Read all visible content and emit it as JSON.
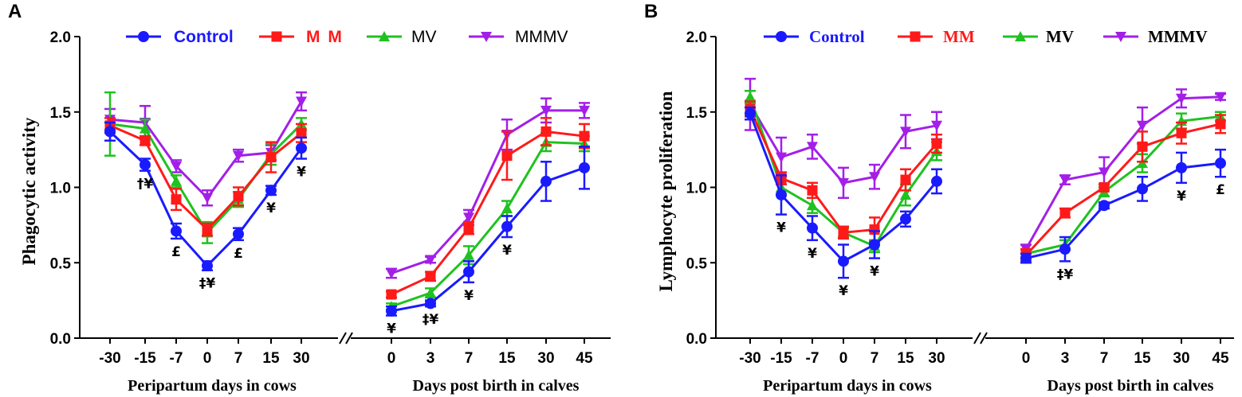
{
  "series_styles": [
    {
      "name": "Control",
      "color": "#1a1aff",
      "marker": "circle"
    },
    {
      "name": "M M",
      "color": "#ff1a1a",
      "marker": "square"
    },
    {
      "name": "MV",
      "color": "#1fc21f",
      "marker": "triangle-up"
    },
    {
      "name": "MMMV",
      "color": "#a31fe8",
      "marker": "triangle-down"
    }
  ],
  "chart_data": [
    {
      "panel_label": "A",
      "type": "line",
      "ylabel": "Phagocytic activity",
      "ylim": [
        0,
        2.0
      ],
      "yticks": [
        "0.0",
        "0.5",
        "1.0",
        "1.5",
        "2.0"
      ],
      "legend": [
        "Control",
        "M M",
        "MV",
        "MMMV"
      ],
      "segments": [
        {
          "xlabel": "Peripartum days in cows",
          "categories": [
            "-30",
            "-15",
            "-7",
            "0",
            "7",
            "15",
            "30"
          ],
          "series": [
            {
              "name": "Control",
              "values": [
                1.37,
                1.15,
                0.71,
                0.48,
                0.69,
                0.98,
                1.26
              ],
              "errors": [
                0.06,
                0.04,
                0.05,
                0.03,
                0.04,
                0.03,
                0.07
              ]
            },
            {
              "name": "M M",
              "values": [
                1.41,
                1.31,
                0.92,
                0.72,
                0.94,
                1.2,
                1.36
              ],
              "errors": [
                0.05,
                0.03,
                0.07,
                0.04,
                0.06,
                0.1,
                0.06
              ]
            },
            {
              "name": "MV",
              "values": [
                1.42,
                1.39,
                1.04,
                0.7,
                0.92,
                1.22,
                1.42
              ],
              "errors": [
                0.21,
                0.06,
                0.04,
                0.07,
                0.05,
                0.07,
                0.04
              ]
            },
            {
              "name": "MMMV",
              "values": [
                1.45,
                1.43,
                1.14,
                0.93,
                1.21,
                1.23,
                1.57
              ],
              "errors": [
                0.07,
                0.11,
                0.04,
                0.05,
                0.04,
                0.05,
                0.06
              ]
            }
          ],
          "annotations": [
            {
              "category": "-15",
              "text": "†¥"
            },
            {
              "category": "-7",
              "text": "£"
            },
            {
              "category": "0",
              "text": "‡¥"
            },
            {
              "category": "7",
              "text": "£"
            },
            {
              "category": "15",
              "text": "¥"
            },
            {
              "category": "30",
              "text": "¥"
            }
          ]
        },
        {
          "xlabel": "Days post birth in calves",
          "categories": [
            "0",
            "3",
            "7",
            "15",
            "30",
            "45"
          ],
          "series": [
            {
              "name": "Control",
              "values": [
                0.18,
                0.23,
                0.44,
                0.74,
                1.04,
                1.13
              ],
              "errors": [
                0.03,
                0.02,
                0.07,
                0.07,
                0.13,
                0.14
              ]
            },
            {
              "name": "M M",
              "values": [
                0.29,
                0.41,
                0.73,
                1.21,
                1.37,
                1.34
              ],
              "errors": [
                0.02,
                0.03,
                0.04,
                0.16,
                0.09,
                0.08
              ]
            },
            {
              "name": "MV",
              "values": [
                0.21,
                0.3,
                0.55,
                0.86,
                1.3,
                1.29
              ],
              "errors": [
                0.02,
                0.03,
                0.06,
                0.05,
                0.06,
                0.05
              ]
            },
            {
              "name": "MMMV",
              "values": [
                0.43,
                0.52,
                0.8,
                1.35,
                1.51,
                1.51
              ],
              "errors": [
                0.03,
                0.02,
                0.05,
                0.1,
                0.08,
                0.05
              ]
            }
          ],
          "annotations": [
            {
              "category": "0",
              "text": "¥"
            },
            {
              "category": "3",
              "text": "‡¥"
            },
            {
              "category": "7",
              "text": "¥"
            },
            {
              "category": "15",
              "text": "¥"
            }
          ]
        }
      ]
    },
    {
      "panel_label": "B",
      "type": "line",
      "ylabel": "Lymphocyte proliferation",
      "ylim": [
        0,
        2.0
      ],
      "yticks": [
        "0.0",
        "0.5",
        "1.0",
        "1.5",
        "2.0"
      ],
      "legend": [
        "Control",
        "MM",
        "MV",
        "MMMV"
      ],
      "segments": [
        {
          "xlabel": "Peripartum days in cows",
          "categories": [
            "-30",
            "-15",
            "-7",
            "0",
            "7",
            "15",
            "30"
          ],
          "series": [
            {
              "name": "Control",
              "values": [
                1.49,
                0.95,
                0.73,
                0.51,
                0.62,
                0.79,
                1.04
              ],
              "errors": [
                0.04,
                0.13,
                0.08,
                0.11,
                0.09,
                0.05,
                0.08
              ]
            },
            {
              "name": "M M",
              "values": [
                1.52,
                1.06,
                0.98,
                0.7,
                0.72,
                1.05,
                1.29
              ],
              "errors": [
                0.05,
                0.04,
                0.05,
                0.04,
                0.08,
                0.07,
                0.06
              ]
            },
            {
              "name": "MV",
              "values": [
                1.6,
                1.0,
                0.88,
                0.7,
                0.61,
                0.95,
                1.24
              ],
              "errors": [
                0.04,
                0.05,
                0.05,
                0.03,
                0.04,
                0.07,
                0.06
              ]
            },
            {
              "name": "MMMV",
              "values": [
                1.55,
                1.2,
                1.27,
                1.03,
                1.07,
                1.37,
                1.41
              ],
              "errors": [
                0.17,
                0.13,
                0.08,
                0.1,
                0.08,
                0.11,
                0.09
              ]
            }
          ],
          "annotations": [
            {
              "category": "-15",
              "text": "¥"
            },
            {
              "category": "-7",
              "text": "¥"
            },
            {
              "category": "0",
              "text": "¥"
            },
            {
              "category": "7",
              "text": "¥"
            }
          ]
        },
        {
          "xlabel": "Days post birth in calves",
          "categories": [
            "0",
            "3",
            "7",
            "15",
            "30",
            "45"
          ],
          "series": [
            {
              "name": "Control",
              "values": [
                0.53,
                0.59,
                0.88,
                0.99,
                1.13,
                1.16
              ],
              "errors": [
                0.03,
                0.08,
                0.02,
                0.08,
                0.1,
                0.09
              ]
            },
            {
              "name": "M M",
              "values": [
                0.55,
                0.83,
                1.0,
                1.27,
                1.36,
                1.42
              ],
              "errors": [
                0.04,
                0.03,
                0.02,
                0.1,
                0.07,
                0.06
              ]
            },
            {
              "name": "MV",
              "values": [
                0.56,
                0.62,
                0.97,
                1.16,
                1.44,
                1.47
              ],
              "errors": [
                0.03,
                0.03,
                0.03,
                0.06,
                0.05,
                0.03
              ]
            },
            {
              "name": "MMMV",
              "values": [
                0.59,
                1.05,
                1.1,
                1.41,
                1.59,
                1.6
              ],
              "errors": [
                0.03,
                0.03,
                0.1,
                0.12,
                0.06,
                0.02
              ]
            }
          ],
          "annotations": [
            {
              "category": "3",
              "text": "‡¥"
            },
            {
              "category": "30",
              "text": "¥"
            },
            {
              "category": "45",
              "text": "£"
            }
          ]
        }
      ]
    }
  ]
}
